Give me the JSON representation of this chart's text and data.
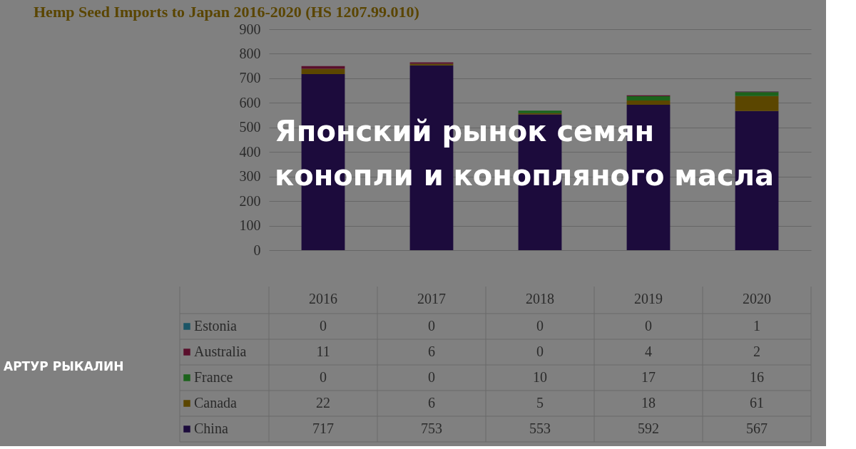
{
  "chart_data": {
    "type": "bar",
    "stacked": true,
    "title": "Японский рынок семян\nконопли и конопляного масла",
    "subtitle": "Hemp Seed Imports to Japan 2016-2020 (HS 1207.99.010)",
    "annotations": [
      "АРТУР РЫКАЛИН"
    ],
    "categories": [
      "2016",
      "2017",
      "2018",
      "2019",
      "2020"
    ],
    "series": [
      {
        "name": "China",
        "color": "#1c0b3c",
        "values": [
          717,
          753,
          553,
          592,
          567
        ]
      },
      {
        "name": "Canada",
        "color": "#5b4600",
        "values": [
          22,
          6,
          5,
          18,
          61
        ]
      },
      {
        "name": "France",
        "color": "#1b631b",
        "values": [
          0,
          0,
          10,
          17,
          16
        ]
      },
      {
        "name": "Australia",
        "color": "#5a0f2c",
        "values": [
          11,
          6,
          0,
          4,
          2
        ]
      },
      {
        "name": "Estonia",
        "color": "#1b5566",
        "values": [
          0,
          0,
          0,
          0,
          1
        ]
      }
    ],
    "ylim": [
      0,
      900
    ],
    "yticks": [
      0,
      100,
      200,
      300,
      400,
      500,
      600,
      700,
      800,
      900
    ],
    "grid": "y",
    "data_labels": true,
    "legend": "bottom left"
  }
}
